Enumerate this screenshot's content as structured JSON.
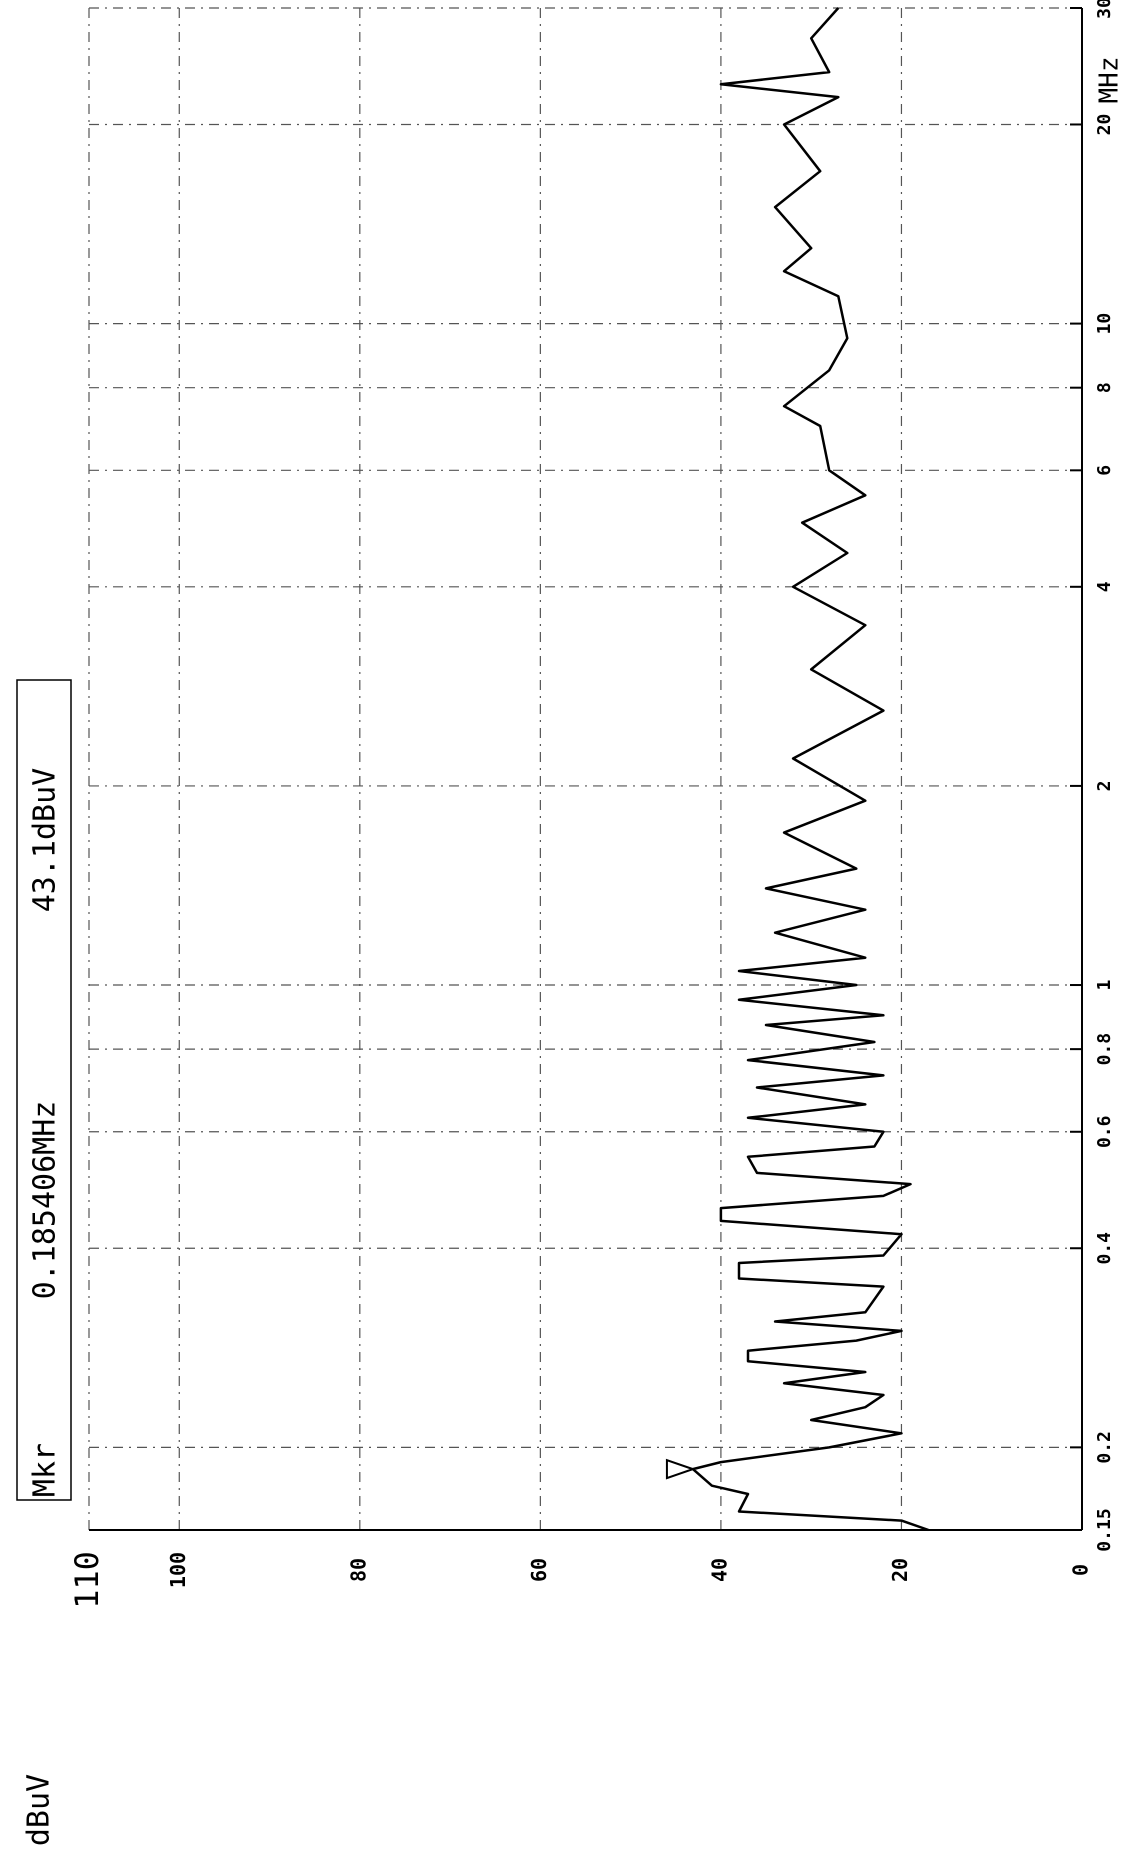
{
  "chart_data": {
    "type": "line",
    "orientation": "rotated",
    "y_unit": "dBuV",
    "x_unit": "MHz",
    "xscale": "log",
    "xlim": [
      0.15,
      30
    ],
    "xticks": [
      0.15,
      0.2,
      0.4,
      0.6,
      0.8,
      1,
      2,
      4,
      6,
      8,
      10,
      20,
      30
    ],
    "ylim": [
      0,
      110
    ],
    "yticks": [
      0,
      20,
      40,
      60,
      80,
      100,
      110
    ],
    "grid": true,
    "color": "#000000",
    "x": [
      0.15,
      0.155,
      0.16,
      0.17,
      0.175,
      0.185406,
      0.19,
      0.2,
      0.21,
      0.22,
      0.23,
      0.24,
      0.25,
      0.26,
      0.27,
      0.28,
      0.29,
      0.3,
      0.31,
      0.32,
      0.35,
      0.36,
      0.38,
      0.39,
      0.42,
      0.44,
      0.46,
      0.48,
      0.5,
      0.52,
      0.55,
      0.57,
      0.6,
      0.63,
      0.66,
      0.7,
      0.73,
      0.77,
      0.82,
      0.87,
      0.9,
      0.95,
      1.0,
      1.05,
      1.1,
      1.2,
      1.3,
      1.4,
      1.5,
      1.7,
      1.9,
      2.2,
      2.6,
      3.0,
      3.5,
      4.0,
      4.5,
      5.0,
      5.5,
      6.0,
      7.0,
      7.5,
      8.5,
      9.5,
      11,
      12,
      13,
      15,
      17,
      20,
      22,
      23,
      24,
      27,
      30
    ],
    "values": [
      17,
      20,
      38,
      37,
      41,
      43.1,
      40,
      28,
      20,
      30,
      24,
      22,
      33,
      24,
      37,
      37,
      25,
      20,
      34,
      24,
      22,
      38,
      38,
      22,
      20,
      40,
      40,
      22,
      19,
      36,
      37,
      23,
      22,
      37,
      24,
      36,
      22,
      37,
      23,
      35,
      22,
      38,
      25,
      38,
      24,
      34,
      24,
      35,
      25,
      33,
      24,
      32,
      22,
      30,
      24,
      32,
      26,
      31,
      24,
      28,
      29,
      33,
      28,
      26,
      27,
      33,
      30,
      34,
      29,
      33,
      27,
      40,
      28,
      30,
      27
    ],
    "marker": {
      "label": "Mkr",
      "freq_label": "0.185406MHz",
      "level_label": "43.1dBuV",
      "x": 0.185406,
      "y": 43.1
    }
  }
}
